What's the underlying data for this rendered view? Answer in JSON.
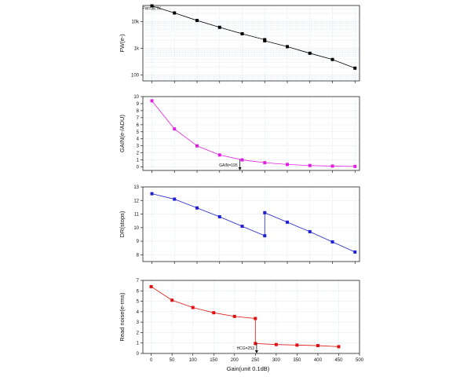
{
  "chart_data": [
    {
      "type": "line",
      "ylabel": "FW(e-)",
      "yscale": "log",
      "ylim": [
        60,
        40000
      ],
      "yticks": [
        100,
        1000,
        10000
      ],
      "yticklabels": [
        "100",
        "1k",
        "10k"
      ],
      "xlim": [
        -20,
        460
      ],
      "x": [
        0,
        50,
        100,
        150,
        200,
        250,
        300,
        350,
        400,
        450
      ],
      "series": [
        {
          "name": "",
          "color": "#000000",
          "x": [
            0,
            50,
            100,
            150,
            200,
            250,
            250,
            300,
            350,
            400,
            450
          ],
          "values": [
            38700,
            21000,
            11000,
            6100,
            3500,
            2100,
            1900,
            1150,
            650,
            380,
            180
          ]
        }
      ],
      "annotations": [
        {
          "text": "FW=38.7K",
          "x": 0,
          "y": 38700
        }
      ],
      "grid": true
    },
    {
      "type": "line",
      "ylabel": "GAIN(e-/ADU)",
      "ylim": [
        -0.5,
        10
      ],
      "yticks": [
        0,
        1,
        2,
        3,
        4,
        5,
        6,
        7,
        8,
        9,
        10
      ],
      "xlim": [
        -20,
        460
      ],
      "series": [
        {
          "name": "",
          "color": "#e020e0",
          "x": [
            0,
            50,
            100,
            150,
            200,
            250,
            300,
            350,
            400,
            450
          ],
          "values": [
            9.4,
            5.4,
            3.0,
            1.7,
            1.0,
            0.6,
            0.35,
            0.2,
            0.12,
            0.07
          ]
        }
      ],
      "annotations": [
        {
          "text": "GAIN=195",
          "x": 195,
          "y": 0.2
        }
      ],
      "grid": true
    },
    {
      "type": "line",
      "ylabel": "DR(stops)",
      "ylim": [
        7.5,
        13
      ],
      "yticks": [
        8,
        9,
        10,
        11,
        12,
        13
      ],
      "xlim": [
        -20,
        460
      ],
      "series": [
        {
          "name": "",
          "color": "#2020d0",
          "x": [
            0,
            50,
            100,
            150,
            200,
            250,
            250,
            300,
            350,
            400,
            450
          ],
          "values": [
            12.5,
            12.1,
            11.45,
            10.8,
            10.1,
            9.4,
            11.1,
            10.4,
            9.7,
            8.95,
            8.2
          ]
        }
      ],
      "grid": true
    },
    {
      "type": "line",
      "ylabel": "Read noise(e-rms)",
      "xlabel": "Gain(unit 0.1dB)",
      "ylim": [
        0,
        7
      ],
      "yticks": [
        0,
        1,
        2,
        3,
        4,
        5,
        6,
        7
      ],
      "xlim": [
        -20,
        500
      ],
      "xticks": [
        0,
        50,
        100,
        150,
        200,
        250,
        300,
        350,
        400,
        450,
        500
      ],
      "series": [
        {
          "name": "",
          "color": "#e01010",
          "x": [
            0,
            50,
            100,
            150,
            200,
            250,
            250,
            300,
            350,
            400,
            450
          ],
          "values": [
            6.4,
            5.1,
            4.4,
            3.9,
            3.55,
            3.35,
            0.95,
            0.85,
            0.8,
            0.75,
            0.65
          ]
        }
      ],
      "annotations": [
        {
          "text": "HCG=253",
          "x": 253,
          "y": 0.3
        }
      ],
      "grid": true
    }
  ]
}
